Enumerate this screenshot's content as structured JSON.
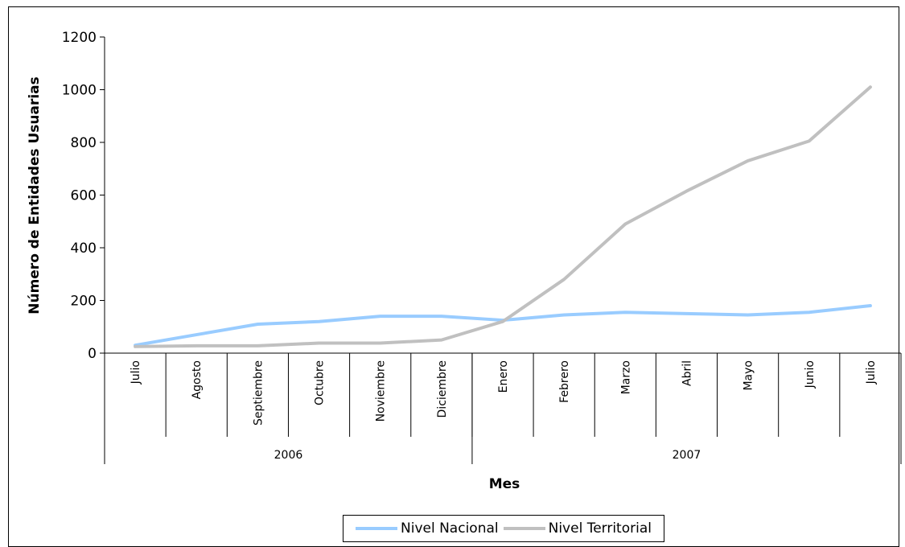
{
  "chart_data": {
    "type": "line",
    "title": "",
    "xlabel": "Mes",
    "ylabel": "Número de  Entidades Usuarias",
    "ylim": [
      0,
      1200
    ],
    "yticks": [
      0,
      200,
      400,
      600,
      800,
      1000,
      1200
    ],
    "categories": [
      "Julio",
      "Agosto",
      "Septiembre",
      "Octubre",
      "Noviembre",
      "Diciembre",
      "Enero",
      "Febrero",
      "Marzo",
      "Abril",
      "Mayo",
      "Junio",
      "Julio"
    ],
    "year_groups": [
      {
        "label": "2006",
        "count": 6
      },
      {
        "label": "2007",
        "count": 7
      }
    ],
    "series": [
      {
        "name": "Nivel Nacional",
        "color": "#99ccff",
        "values": [
          30,
          70,
          110,
          120,
          140,
          140,
          125,
          145,
          155,
          150,
          145,
          155,
          180
        ]
      },
      {
        "name": "Nivel Territorial",
        "color": "#c0c0c0",
        "values": [
          25,
          28,
          28,
          38,
          38,
          50,
          120,
          280,
          490,
          615,
          730,
          805,
          1010
        ]
      }
    ],
    "grid": false,
    "legend_position": "bottom"
  }
}
